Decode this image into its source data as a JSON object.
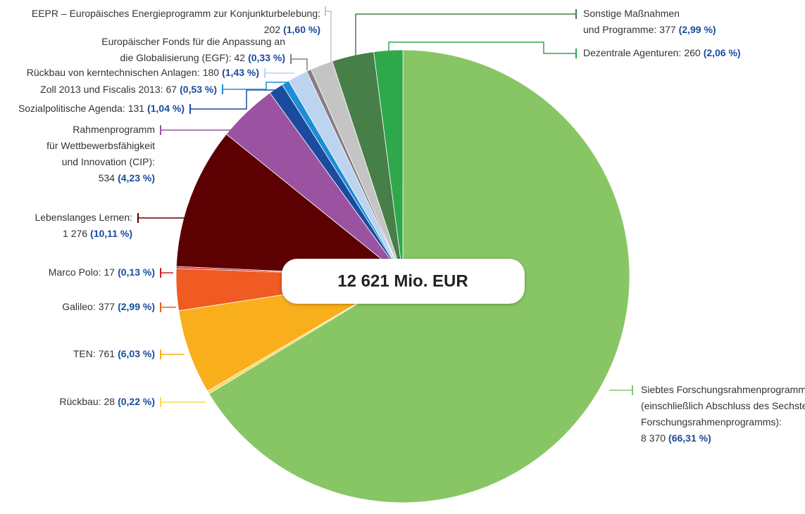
{
  "chart_data": {
    "type": "pie",
    "center_label": "12 621 Mio. EUR",
    "total": 12621,
    "categories": [
      [
        "Siebtes Forschungsrahmenprogramm",
        "(einschließlich Abschluss des Sechsten",
        "Forschungsrahmenprogramms):"
      ],
      [
        "Rückbau:"
      ],
      [
        "TEN:"
      ],
      [
        "Galileo:"
      ],
      [
        "Marco Polo:"
      ],
      [
        "Lebenslanges Lernen:"
      ],
      [
        "Rahmenprogramm",
        "für Wettbewerbsfähigkeit",
        "und Innovation (CIP):"
      ],
      [
        "Sozialpolitische Agenda:"
      ],
      [
        "Zoll 2013 und Fiscalis 2013:"
      ],
      [
        "Rückbau von kerntechnischen Anlagen:"
      ],
      [
        "Europäischer Fonds für die Anpassung an",
        "die Globalisierung (EGF):"
      ],
      [
        "EEPR – Europäisches Energieprogramm zur Konjunkturbelebung:"
      ],
      [
        "Sonstige Maßnahmen",
        "und Programme:"
      ],
      [
        "Dezentrale Agenturen:"
      ]
    ],
    "values": [
      8370,
      28,
      761,
      377,
      17,
      1276,
      534,
      131,
      67,
      180,
      42,
      202,
      377,
      260
    ],
    "value_labels": [
      "8 370",
      "28",
      "761",
      "377",
      "17",
      "1 276",
      "534",
      "131",
      "67",
      "180",
      "42",
      "202",
      "377",
      "260"
    ],
    "percents": [
      66.31,
      0.22,
      6.03,
      2.99,
      0.13,
      10.11,
      4.23,
      1.04,
      0.53,
      1.43,
      0.33,
      1.6,
      2.99,
      2.06
    ],
    "percent_labels": [
      "(66,31 %)",
      "(0,22 %)",
      "(6,03 %)",
      "(2,99 %)",
      "(0,13 %)",
      "(10,11 %)",
      "(4,23 %)",
      "(1,04 %)",
      "(0,53 %)",
      "(1,43 %)",
      "(0,33 %)",
      "(1,60 %)",
      "(2,99 %)",
      "(2,06 %)"
    ],
    "colors": [
      "#88c665",
      "#f9d95e",
      "#f9ae1c",
      "#f05a23",
      "#c71f25",
      "#5c0002",
      "#9b52a0",
      "#1a4b9e",
      "#1d8dd6",
      "#bcd4ef",
      "#857e86",
      "#c4c4c4",
      "#467f47",
      "#2ea84a"
    ]
  }
}
